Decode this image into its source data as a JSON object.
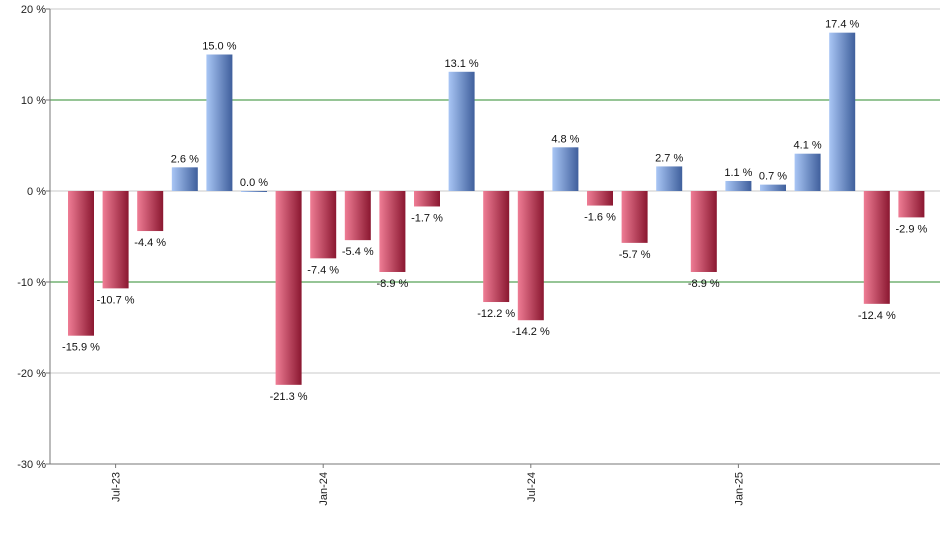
{
  "chart_data": {
    "type": "bar",
    "title": "",
    "xlabel": "",
    "ylabel": "",
    "ylim": [
      -30,
      20
    ],
    "yticks": [
      20,
      10,
      0,
      -10,
      -20,
      -30
    ],
    "ytick_labels": [
      "20 %",
      "10 %",
      "0 %",
      "-10 %",
      "-20 %",
      "-30 %"
    ],
    "grid": "horizontal",
    "categories": [
      "2023-06",
      "2023-07",
      "2023-08",
      "2023-09",
      "2023-10",
      "2023-11",
      "2023-12",
      "2024-01",
      "2024-02",
      "2024-03",
      "2024-04",
      "2024-05",
      "2024-06",
      "2024-07",
      "2024-08",
      "2024-09",
      "2024-10",
      "2024-11",
      "2024-12",
      "2025-01",
      "2025-02",
      "2025-03",
      "2025-04",
      "2025-05",
      "2025-06"
    ],
    "values": [
      -15.9,
      -10.7,
      -4.4,
      2.6,
      15.0,
      0.0,
      -21.3,
      -7.4,
      -5.4,
      -8.9,
      -1.7,
      13.1,
      -12.2,
      -14.2,
      4.8,
      -1.6,
      -5.7,
      2.7,
      -8.9,
      1.1,
      0.7,
      4.1,
      17.4,
      -12.4,
      -2.9
    ],
    "value_labels": [
      "-15.9 %",
      "-10.7 %",
      "-4.4 %",
      "2.6 %",
      "15.0 %",
      "0.0 %",
      "-21.3 %",
      "-7.4 %",
      "-5.4 %",
      "-8.9 %",
      "-1.7 %",
      "13.1 %",
      "-12.2 %",
      "-14.2 %",
      "4.8 %",
      "-1.6 %",
      "-5.7 %",
      "2.7 %",
      "-8.9 %",
      "1.1 %",
      "0.7 %",
      "4.1 %",
      "17.4 %",
      "-12.4 %",
      "-2.9 %"
    ],
    "xtick_labels": [
      {
        "index": 1,
        "label": "Jul-23"
      },
      {
        "index": 7,
        "label": "Jan-24"
      },
      {
        "index": 13,
        "label": "Jul-24"
      },
      {
        "index": 19,
        "label": "Jan-25"
      }
    ],
    "colors": {
      "positive_light": "#a9c6f5",
      "positive_dark": "#3f5f9c",
      "negative_light": "#ef7d95",
      "negative_dark": "#8a1730",
      "grid_major": "#2e8b2e",
      "grid_minor": "#c8c8c8",
      "axis": "#777777"
    }
  }
}
